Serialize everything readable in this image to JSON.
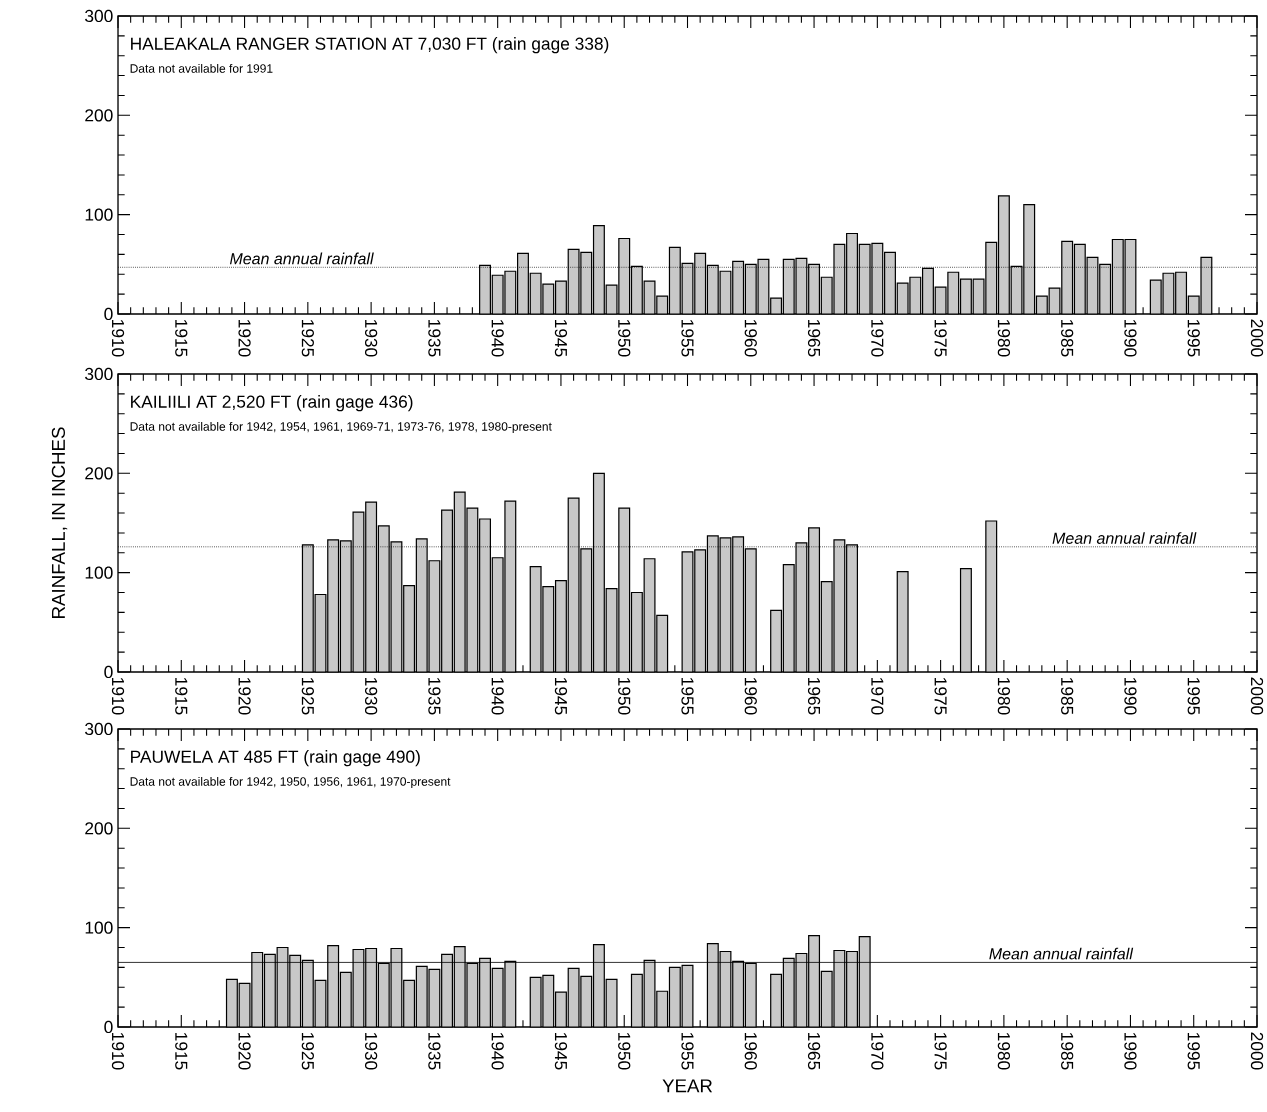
{
  "chart_data": [
    {
      "type": "bar",
      "title": "HALEAKALA RANGER STATION AT 7,030 FT (rain gage 338)",
      "subtitle": "Data not available for 1991",
      "color": "#c8c8c8",
      "x": [
        1939,
        1940,
        1941,
        1942,
        1943,
        1944,
        1945,
        1946,
        1947,
        1948,
        1949,
        1950,
        1951,
        1952,
        1953,
        1954,
        1955,
        1956,
        1957,
        1958,
        1959,
        1960,
        1961,
        1962,
        1963,
        1964,
        1965,
        1966,
        1967,
        1968,
        1969,
        1970,
        1971,
        1972,
        1973,
        1974,
        1975,
        1976,
        1977,
        1978,
        1979,
        1980,
        1981,
        1982,
        1983,
        1984,
        1985,
        1986,
        1987,
        1988,
        1989,
        1990,
        1991,
        1992,
        1993,
        1994,
        1995,
        1996
      ],
      "values": [
        49,
        39,
        43,
        61,
        41,
        30,
        33,
        65,
        62,
        89,
        29,
        76,
        48,
        33,
        18,
        67,
        51,
        61,
        49,
        43,
        53,
        50,
        55,
        16,
        55,
        56,
        50,
        37,
        70,
        81,
        70,
        71,
        62,
        31,
        37,
        46,
        27,
        42,
        35,
        35,
        72,
        119,
        48,
        110,
        18,
        26,
        73,
        70,
        57,
        50,
        75,
        75,
        null,
        34,
        41,
        42,
        18,
        57
      ],
      "xlim": [
        1910,
        2000
      ],
      "xticks": [
        1910,
        1915,
        1920,
        1925,
        1930,
        1935,
        1940,
        1945,
        1950,
        1955,
        1960,
        1965,
        1970,
        1975,
        1980,
        1985,
        1990,
        1995,
        2000
      ],
      "ylim": [
        0,
        300
      ],
      "yticks": [
        0,
        100,
        200,
        300
      ],
      "ref_lines": [
        {
          "axis": "y",
          "value": 47,
          "label": "Mean annual rainfall",
          "line_style": "dotted"
        }
      ]
    },
    {
      "type": "bar",
      "title": "KAILIILI AT 2,520 FT (rain gage 436)",
      "subtitle": "Data not available for 1942, 1954, 1961, 1969-71, 1973-76, 1978, 1980-present",
      "color": "#c8c8c8",
      "ylabel": "RAINFALL, IN INCHES",
      "x": [
        1925,
        1926,
        1927,
        1928,
        1929,
        1930,
        1931,
        1932,
        1933,
        1934,
        1935,
        1936,
        1937,
        1938,
        1939,
        1940,
        1941,
        1942,
        1943,
        1944,
        1945,
        1946,
        1947,
        1948,
        1949,
        1950,
        1951,
        1952,
        1953,
        1954,
        1955,
        1956,
        1957,
        1958,
        1959,
        1960,
        1961,
        1962,
        1963,
        1964,
        1965,
        1966,
        1967,
        1968,
        1969,
        1970,
        1971,
        1972,
        1973,
        1974,
        1975,
        1976,
        1977,
        1978,
        1979
      ],
      "values": [
        128,
        78,
        133,
        132,
        161,
        171,
        147,
        131,
        87,
        134,
        112,
        163,
        181,
        165,
        154,
        115,
        172,
        null,
        106,
        86,
        92,
        175,
        124,
        200,
        84,
        165,
        80,
        114,
        57,
        null,
        121,
        123,
        137,
        135,
        136,
        124,
        null,
        62,
        108,
        130,
        145,
        91,
        133,
        128,
        null,
        null,
        null,
        101,
        null,
        null,
        null,
        null,
        104,
        null,
        152
      ],
      "xlim": [
        1910,
        2000
      ],
      "xticks": [
        1910,
        1915,
        1920,
        1925,
        1930,
        1935,
        1940,
        1945,
        1950,
        1955,
        1960,
        1965,
        1970,
        1975,
        1980,
        1985,
        1990,
        1995,
        2000
      ],
      "ylim": [
        0,
        300
      ],
      "yticks": [
        0,
        100,
        200,
        300
      ],
      "ref_lines": [
        {
          "axis": "y",
          "value": 126,
          "label": "Mean annual rainfall",
          "line_style": "dotted"
        }
      ]
    },
    {
      "type": "bar",
      "title": "PAUWELA AT 485 FT (rain gage 490)",
      "subtitle": "Data not available for 1942, 1950, 1956, 1961, 1970-present",
      "color": "#c8c8c8",
      "xlabel": "YEAR",
      "x": [
        1919,
        1920,
        1921,
        1922,
        1923,
        1924,
        1925,
        1926,
        1927,
        1928,
        1929,
        1930,
        1931,
        1932,
        1933,
        1934,
        1935,
        1936,
        1937,
        1938,
        1939,
        1940,
        1941,
        1942,
        1943,
        1944,
        1945,
        1946,
        1947,
        1948,
        1949,
        1950,
        1951,
        1952,
        1953,
        1954,
        1955,
        1956,
        1957,
        1958,
        1959,
        1960,
        1961,
        1962,
        1963,
        1964,
        1965,
        1966,
        1967,
        1968,
        1969
      ],
      "values": [
        48,
        44,
        75,
        73,
        80,
        72,
        67,
        47,
        82,
        55,
        78,
        79,
        64,
        79,
        47,
        61,
        58,
        73,
        81,
        64,
        69,
        59,
        66,
        null,
        50,
        52,
        35,
        59,
        51,
        83,
        48,
        null,
        53,
        67,
        36,
        60,
        62,
        null,
        84,
        76,
        66,
        64,
        null,
        53,
        69,
        74,
        92,
        56,
        77,
        76,
        91
      ],
      "xlim": [
        1910,
        2000
      ],
      "xticks": [
        1910,
        1915,
        1920,
        1925,
        1930,
        1935,
        1940,
        1945,
        1950,
        1955,
        1960,
        1965,
        1970,
        1975,
        1980,
        1985,
        1990,
        1995,
        2000
      ],
      "ylim": [
        0,
        300
      ],
      "yticks": [
        0,
        100,
        200,
        300
      ],
      "ref_lines": [
        {
          "axis": "y",
          "value": 65,
          "label": "Mean annual rainfall",
          "line_style": "solid"
        }
      ]
    }
  ]
}
